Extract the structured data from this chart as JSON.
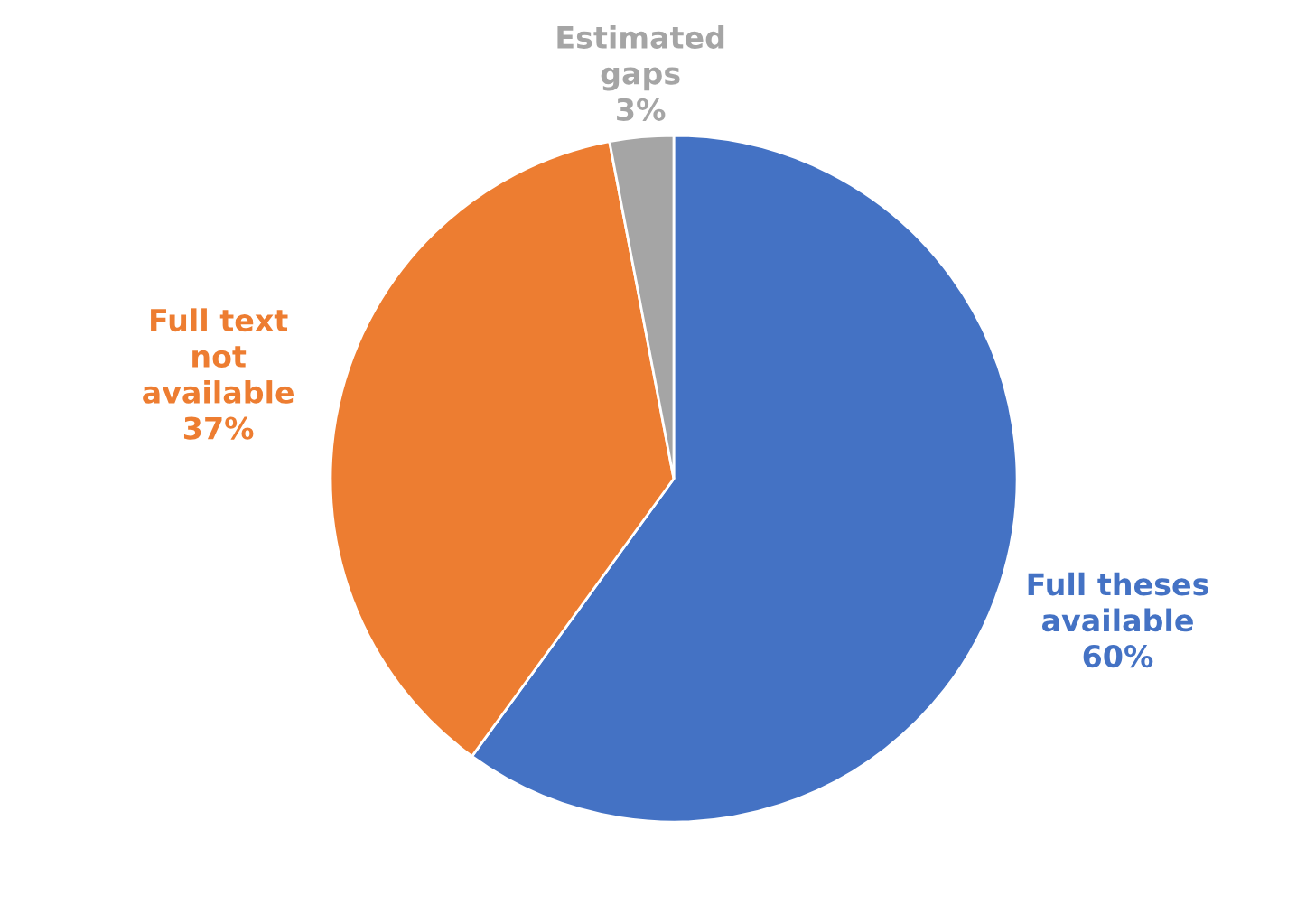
{
  "chart_data": {
    "type": "pie",
    "categories": [
      "Full theses available",
      "Full text not available",
      "Estimated gaps"
    ],
    "values": [
      60,
      37,
      3
    ],
    "colors": [
      "#4472c4",
      "#ed7d31",
      "#a5a5a5"
    ],
    "value_labels": [
      "60%",
      "37%",
      "3%"
    ],
    "legend": false
  }
}
